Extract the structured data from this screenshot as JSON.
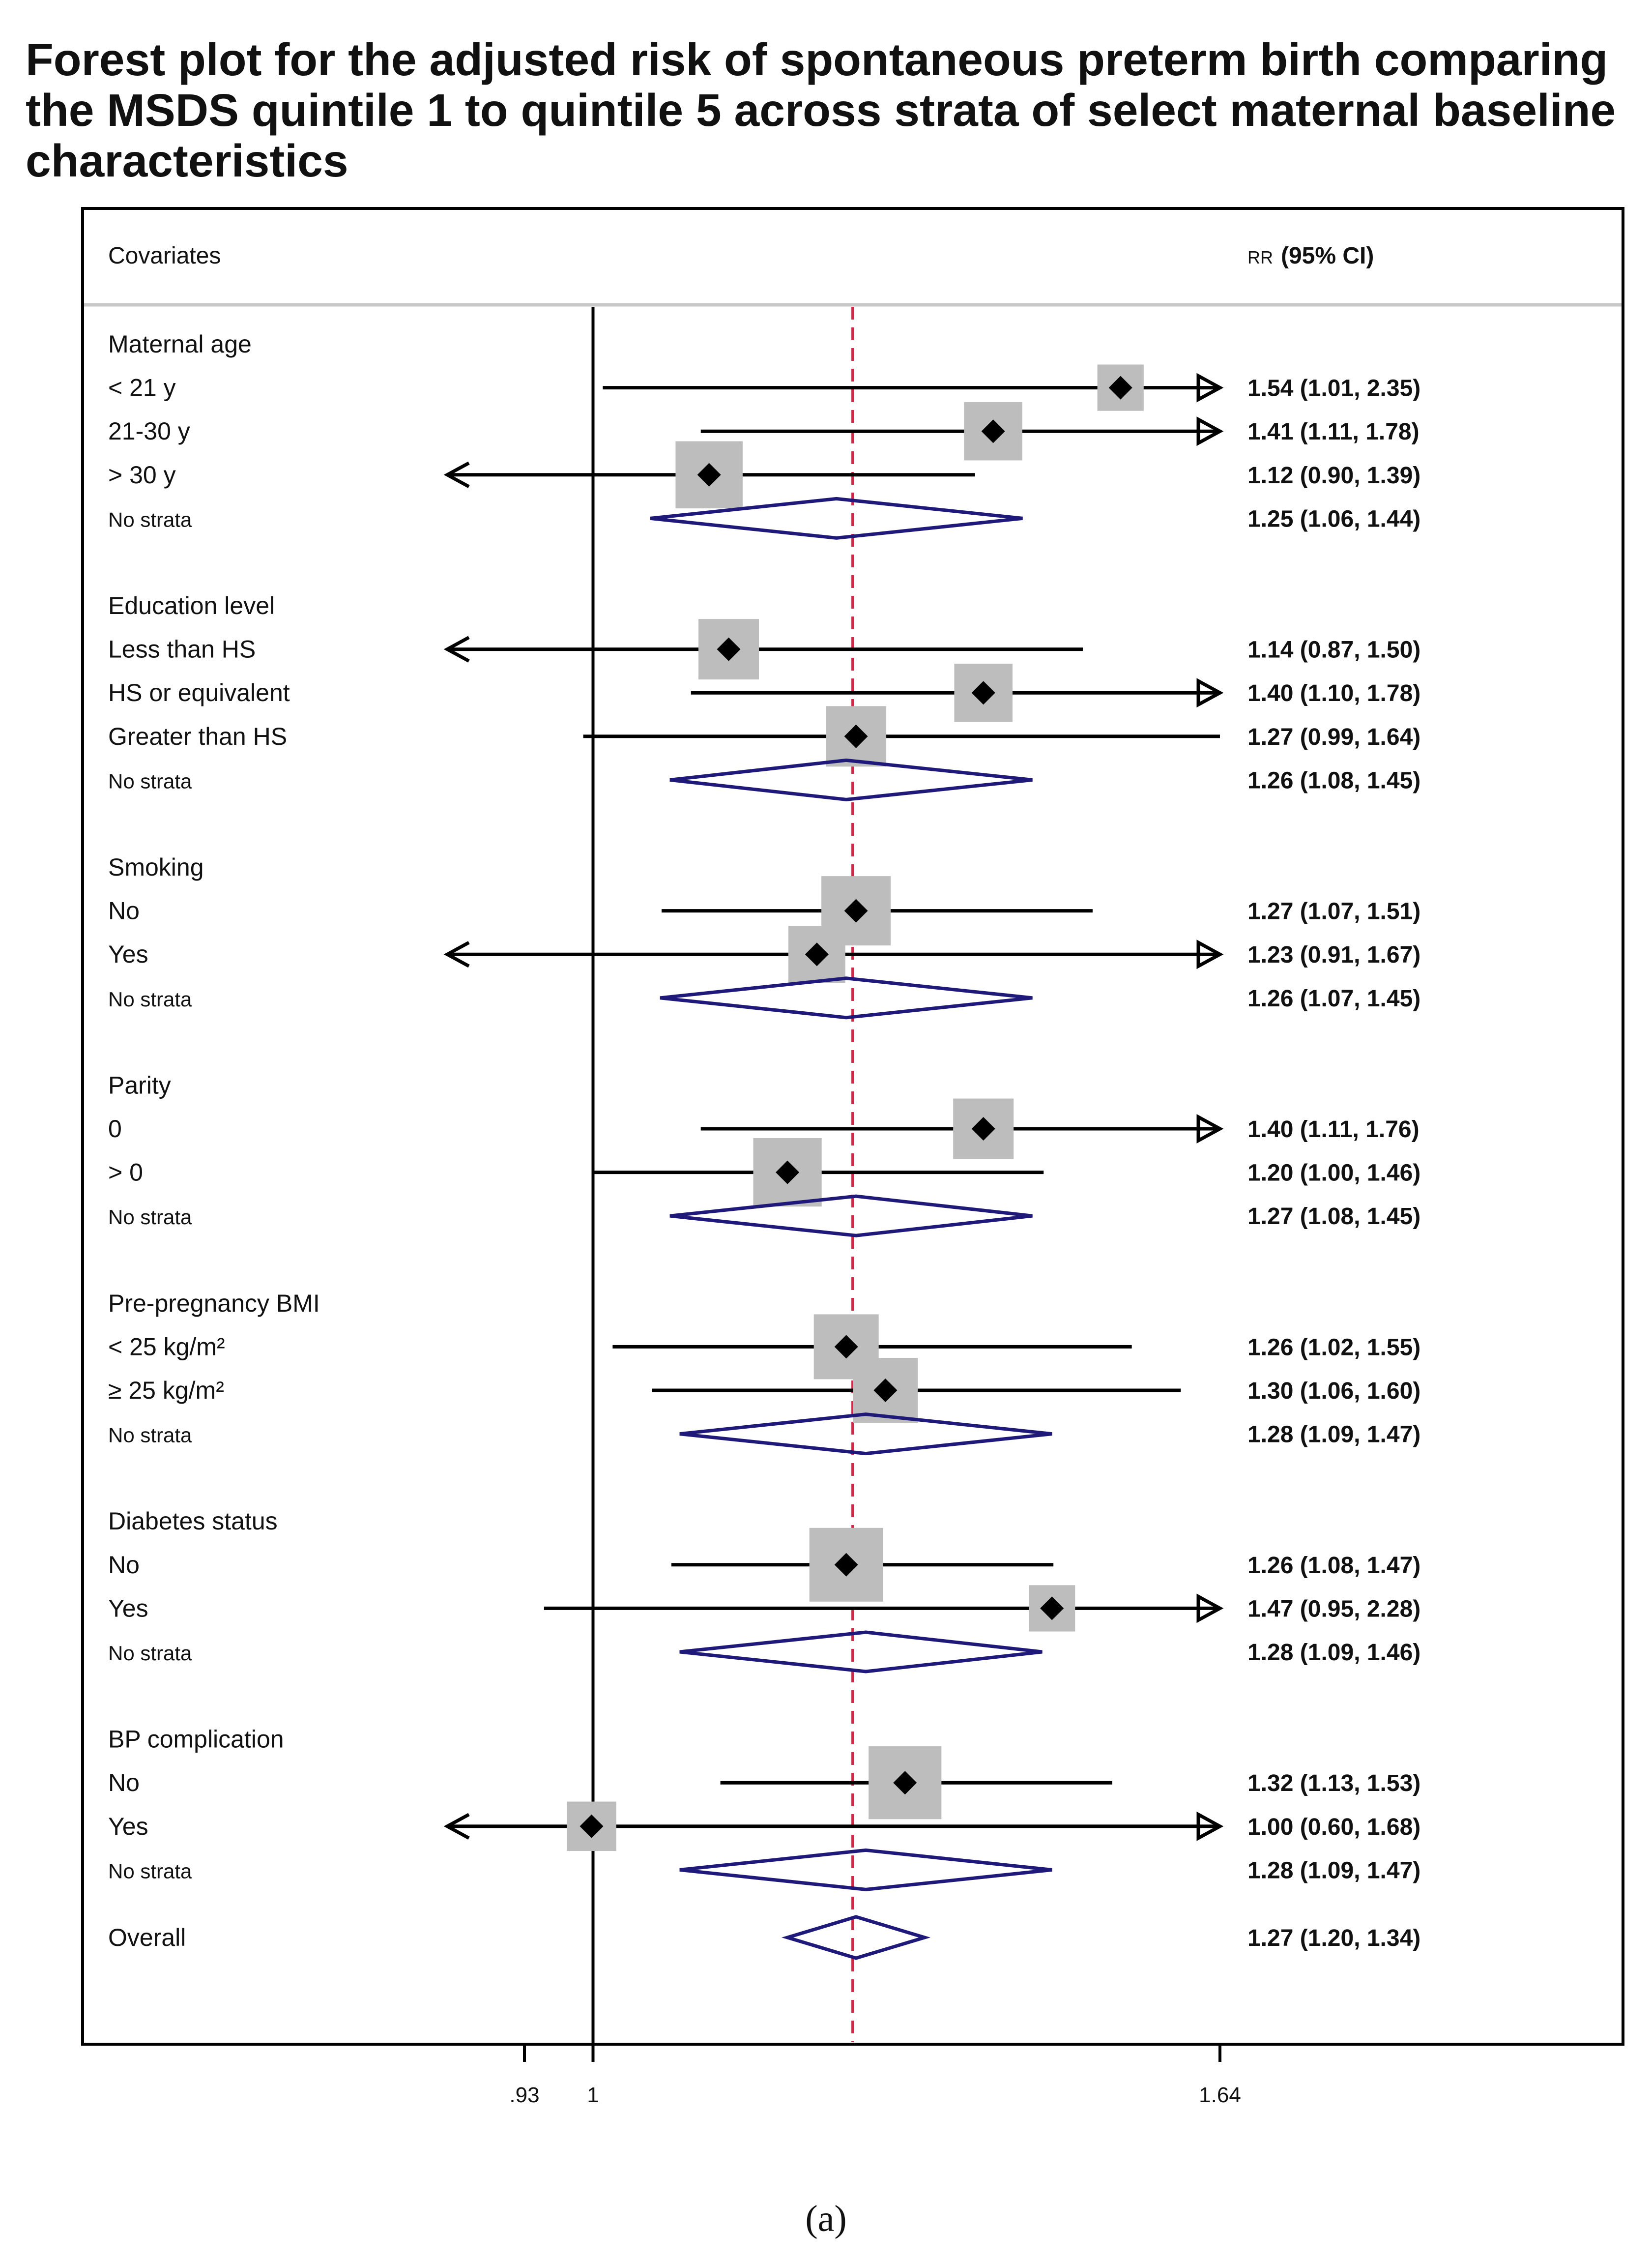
{
  "title": "Forest plot for the adjusted risk of spontaneous preterm birth comparing the MSDS quintile 1 to quintile 5 across strata of select maternal baseline characteristics",
  "caption": "(a)",
  "colors": {
    "box": "#bdbdbd",
    "point": "#000000",
    "diamond": "#1f1a7a",
    "ref_line": "#000000",
    "overall_line": "#cc2a45",
    "header_sep": "#c8c8c8"
  },
  "chart_data": {
    "type": "forest",
    "header_left": "Covariates",
    "header_right_small": "RR",
    "header_right_bold": "(95% CI)",
    "x_ticks": [
      {
        "value": 0.93,
        "label": ".93"
      },
      {
        "value": 1.0,
        "label": "1"
      },
      {
        "value": 1.64,
        "label": "1.64"
      }
    ],
    "xlim": [
      0.93,
      1.64
    ],
    "reference_value": 1.0,
    "overall_line_value": 1.27,
    "rows": [
      {
        "label": "Maternal age",
        "kind": "heading"
      },
      {
        "label": "< 21 y",
        "kind": "estimate",
        "rr": 1.54,
        "lo": 1.01,
        "hi": 2.35,
        "weight": 0.38,
        "text": "1.54 (1.01, 2.35)"
      },
      {
        "label": "21-30 y",
        "kind": "estimate",
        "rr": 1.41,
        "lo": 1.11,
        "hi": 1.78,
        "weight": 0.65,
        "text": "1.41 (1.11, 1.78)"
      },
      {
        "label": "> 30 y",
        "kind": "estimate",
        "rr": 1.12,
        "lo": 0.9,
        "hi": 1.39,
        "weight": 0.85,
        "text": "1.12 (0.90, 1.39)"
      },
      {
        "label": "No strata",
        "kind": "pooled",
        "rr": 1.25,
        "lo": 1.06,
        "hi": 1.44,
        "text": "1.25 (1.06, 1.44)"
      },
      {
        "label": "Education level",
        "kind": "heading"
      },
      {
        "label": "Less than HS",
        "kind": "estimate",
        "rr": 1.14,
        "lo": 0.87,
        "hi": 1.5,
        "weight": 0.7,
        "text": "1.14 (0.87, 1.50)"
      },
      {
        "label": "HS or equivalent",
        "kind": "estimate",
        "rr": 1.4,
        "lo": 1.1,
        "hi": 1.78,
        "weight": 0.65,
        "text": "1.40 (1.10, 1.78)"
      },
      {
        "label": "Greater than HS",
        "kind": "estimate",
        "rr": 1.27,
        "lo": 0.99,
        "hi": 1.64,
        "weight": 0.7,
        "text": "1.27 (0.99, 1.64)"
      },
      {
        "label": "No strata",
        "kind": "pooled",
        "rr": 1.26,
        "lo": 1.08,
        "hi": 1.45,
        "text": "1.26 (1.08, 1.45)"
      },
      {
        "label": "Smoking",
        "kind": "heading"
      },
      {
        "label": "No",
        "kind": "estimate",
        "rr": 1.27,
        "lo": 1.07,
        "hi": 1.51,
        "weight": 0.9,
        "text": "1.27 (1.07, 1.51)"
      },
      {
        "label": "Yes",
        "kind": "estimate",
        "rr": 1.23,
        "lo": 0.91,
        "hi": 1.67,
        "weight": 0.62,
        "text": "1.23 (0.91, 1.67)"
      },
      {
        "label": "No strata",
        "kind": "pooled",
        "rr": 1.26,
        "lo": 1.07,
        "hi": 1.45,
        "text": "1.26 (1.07, 1.45)"
      },
      {
        "label": "Parity",
        "kind": "heading"
      },
      {
        "label": "0",
        "kind": "estimate",
        "rr": 1.4,
        "lo": 1.11,
        "hi": 1.76,
        "weight": 0.7,
        "text": "1.40 (1.11, 1.76)"
      },
      {
        "label": "> 0",
        "kind": "estimate",
        "rr": 1.2,
        "lo": 1.0,
        "hi": 1.46,
        "weight": 0.88,
        "text": "1.20 (1.00, 1.46)"
      },
      {
        "label": "No strata",
        "kind": "pooled",
        "rr": 1.27,
        "lo": 1.08,
        "hi": 1.45,
        "text": "1.27 (1.08, 1.45)"
      },
      {
        "label": "Pre-pregnancy BMI",
        "kind": "heading"
      },
      {
        "label": "< 25 kg/m²",
        "kind": "estimate",
        "rr": 1.26,
        "lo": 1.02,
        "hi": 1.55,
        "weight": 0.8,
        "text": "1.26 (1.02, 1.55)"
      },
      {
        "label": "≥ 25 kg/m²",
        "kind": "estimate",
        "rr": 1.3,
        "lo": 1.06,
        "hi": 1.6,
        "weight": 0.8,
        "text": "1.30 (1.06, 1.60)"
      },
      {
        "label": "No strata",
        "kind": "pooled",
        "rr": 1.28,
        "lo": 1.09,
        "hi": 1.47,
        "text": "1.28 (1.09, 1.47)"
      },
      {
        "label": "Diabetes status",
        "kind": "heading"
      },
      {
        "label": "No",
        "kind": "estimate",
        "rr": 1.26,
        "lo": 1.08,
        "hi": 1.47,
        "weight": 1.0,
        "text": "1.26 (1.08, 1.47)"
      },
      {
        "label": "Yes",
        "kind": "estimate",
        "rr": 1.47,
        "lo": 0.95,
        "hi": 2.28,
        "weight": 0.38,
        "text": "1.47 (0.95, 2.28)"
      },
      {
        "label": "No strata",
        "kind": "pooled",
        "rr": 1.28,
        "lo": 1.09,
        "hi": 1.46,
        "text": "1.28 (1.09, 1.46)"
      },
      {
        "label": "BP complication",
        "kind": "heading"
      },
      {
        "label": "No",
        "kind": "estimate",
        "rr": 1.32,
        "lo": 1.13,
        "hi": 1.53,
        "weight": 0.98,
        "text": "1.32 (1.13, 1.53)"
      },
      {
        "label": "Yes",
        "kind": "estimate",
        "rr": 1.0,
        "lo": 0.6,
        "hi": 1.68,
        "weight": 0.45,
        "text": "1.00 (0.60, 1.68)"
      },
      {
        "label": "No strata",
        "kind": "pooled",
        "rr": 1.28,
        "lo": 1.09,
        "hi": 1.47,
        "text": "1.28 (1.09, 1.47)"
      },
      {
        "label": "Overall",
        "kind": "overall",
        "rr": 1.27,
        "lo": 1.2,
        "hi": 1.34,
        "text": "1.27 (1.20, 1.34)"
      }
    ]
  }
}
